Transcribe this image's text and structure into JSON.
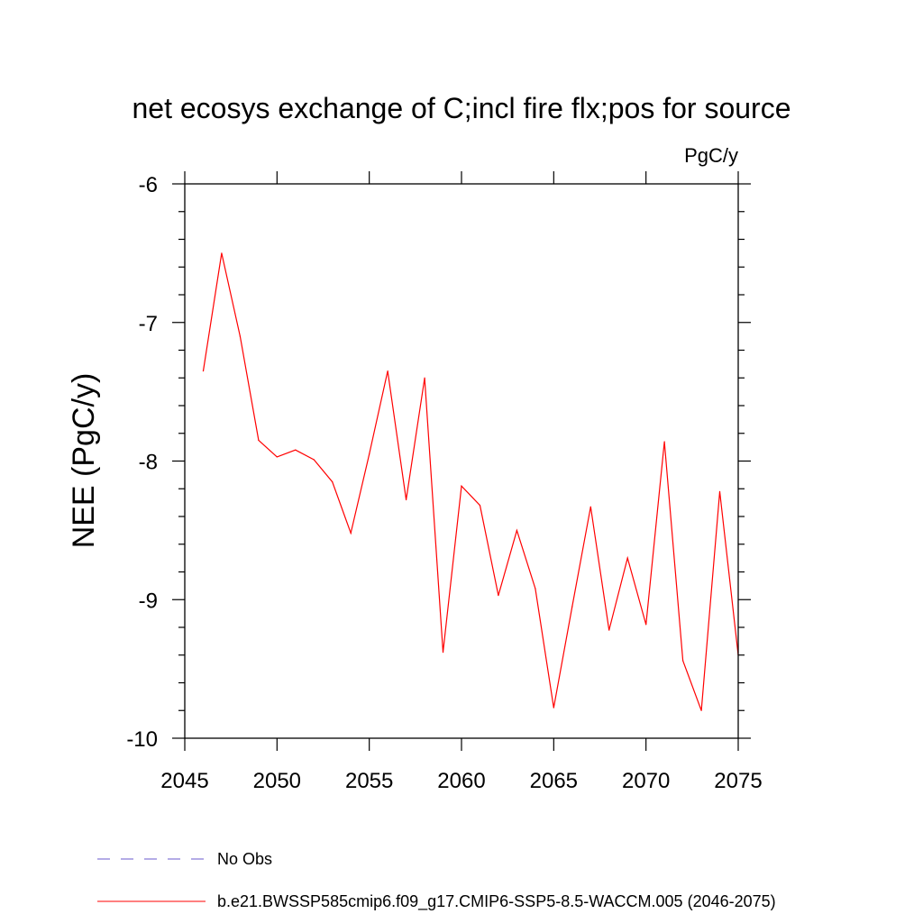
{
  "chart_data": {
    "type": "line",
    "title": "net ecosys exchange of C;incl fire flx;pos for source",
    "units_label": "PgC/y",
    "xlabel": "",
    "ylabel": "NEE  (PgC/y)",
    "xlim": [
      2045,
      2075
    ],
    "ylim": [
      -10,
      -6
    ],
    "x_ticks": [
      2045,
      2050,
      2055,
      2060,
      2065,
      2070,
      2075
    ],
    "x_tick_labels": [
      "2045",
      "2050",
      "2055",
      "2060",
      "2065",
      "2070",
      "2075"
    ],
    "y_ticks": [
      -6,
      -7,
      -8,
      -9,
      -10
    ],
    "y_tick_labels": [
      "-6",
      "-7",
      "-8",
      "-9",
      "-10"
    ],
    "grid": false,
    "legend_position": "bottom",
    "legend": [
      {
        "label": "No Obs",
        "color": "#6a5acd",
        "style": "dashed"
      },
      {
        "label": "b.e21.BWSSP585cmip6.f09_g17.CMIP6-SSP5-8.5-WACCM.005 (2046-2075)",
        "color": "#ff0000",
        "style": "solid"
      }
    ],
    "series": [
      {
        "name": "b.e21.BWSSP585cmip6.f09_g17.CMIP6-SSP5-8.5-WACCM.005 (2046-2075)",
        "color": "#ff0000",
        "x": [
          2046,
          2047,
          2048,
          2049,
          2050,
          2051,
          2052,
          2053,
          2054,
          2055,
          2056,
          2057,
          2058,
          2059,
          2060,
          2061,
          2062,
          2063,
          2064,
          2065,
          2066,
          2067,
          2068,
          2069,
          2070,
          2071,
          2072,
          2073,
          2074,
          2075
        ],
        "y": [
          -7.35,
          -6.5,
          -7.1,
          -7.85,
          -7.97,
          -7.92,
          -7.99,
          -8.15,
          -8.52,
          -7.95,
          -7.35,
          -8.28,
          -7.4,
          -9.38,
          -8.18,
          -8.32,
          -8.97,
          -8.5,
          -8.92,
          -9.78,
          -9.05,
          -8.33,
          -9.22,
          -8.7,
          -9.18,
          -7.86,
          -9.44,
          -9.8,
          -8.22,
          -9.4
        ]
      }
    ]
  }
}
